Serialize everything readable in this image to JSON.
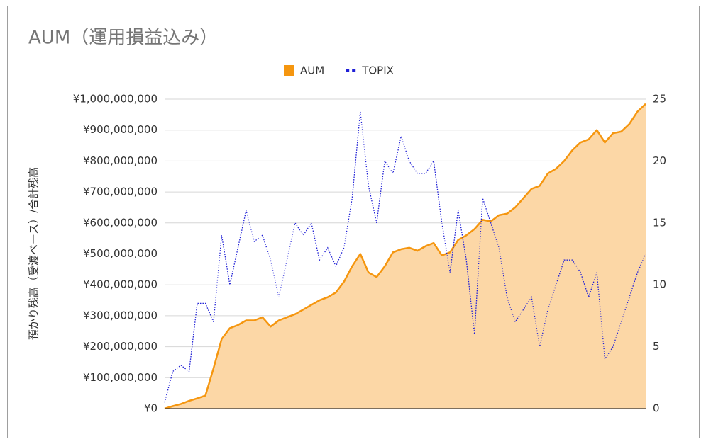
{
  "chart_data": {
    "type": "area_line",
    "title": "AUM（運用損益込み）",
    "y_label": "預かり残高（受渡ベース）/合計残高",
    "legend_position": "top",
    "grid": true,
    "categories": [
      null,
      null,
      null,
      null,
      null,
      null,
      null,
      null,
      null,
      null,
      null,
      null,
      null,
      null,
      null,
      null,
      null,
      null,
      null,
      null,
      null,
      null,
      null,
      null,
      null,
      null,
      null,
      null,
      null,
      null,
      null,
      null,
      null,
      null,
      null,
      null,
      null,
      null,
      null,
      null,
      null,
      null,
      null,
      null,
      null,
      null,
      null,
      null,
      null,
      null,
      null,
      null,
      null,
      null,
      null,
      null,
      null,
      null,
      null,
      null
    ],
    "series": [
      {
        "name": "AUM",
        "color": "#f5960f",
        "fill": "#fcd7a6",
        "style": "area",
        "values": [
          0,
          8000000,
          15000000,
          25000000,
          33000000,
          42000000,
          130000000,
          225000000,
          260000000,
          270000000,
          285000000,
          285000000,
          295000000,
          265000000,
          285000000,
          295000000,
          305000000,
          320000000,
          335000000,
          350000000,
          360000000,
          375000000,
          410000000,
          460000000,
          500000000,
          440000000,
          425000000,
          460000000,
          505000000,
          515000000,
          520000000,
          510000000,
          525000000,
          535000000,
          495000000,
          505000000,
          545000000,
          560000000,
          580000000,
          610000000,
          605000000,
          625000000,
          630000000,
          650000000,
          680000000,
          710000000,
          720000000,
          760000000,
          775000000,
          800000000,
          835000000,
          860000000,
          870000000,
          900000000,
          860000000,
          890000000,
          895000000,
          920000000,
          960000000,
          985000000
        ]
      },
      {
        "name": "TOPIX",
        "color": "#1f1fd6",
        "style": "dotted",
        "axis": "y2",
        "values": [
          0.5,
          3,
          3.5,
          3,
          8.5,
          8.5,
          7,
          14,
          10,
          13,
          16,
          13.5,
          14,
          12,
          9,
          12,
          15,
          14,
          15,
          12,
          13,
          11.5,
          13,
          17,
          24,
          18,
          15,
          20,
          19,
          22,
          20,
          19,
          19,
          20,
          15,
          11,
          16,
          12,
          6,
          17,
          15,
          13,
          9,
          7,
          8,
          9,
          5,
          8,
          10,
          12,
          12,
          11,
          9,
          11,
          4,
          5,
          7,
          9,
          11,
          12.5
        ]
      }
    ],
    "ylim": [
      0,
      1000000000
    ],
    "yticks": [
      {
        "value": 0,
        "label": "¥0"
      },
      {
        "value": 100000000,
        "label": "¥100,000,000"
      },
      {
        "value": 200000000,
        "label": "¥200,000,000"
      },
      {
        "value": 300000000,
        "label": "¥300,000,000"
      },
      {
        "value": 400000000,
        "label": "¥400,000,000"
      },
      {
        "value": 500000000,
        "label": "¥500,000,000"
      },
      {
        "value": 600000000,
        "label": "¥600,000,000"
      },
      {
        "value": 700000000,
        "label": "¥700,000,000"
      },
      {
        "value": 800000000,
        "label": "¥800,000,000"
      },
      {
        "value": 900000000,
        "label": "¥900,000,000"
      },
      {
        "value": 1000000000,
        "label": "¥1,000,000,000"
      }
    ],
    "y2lim": [
      0,
      25
    ],
    "y2ticks": [
      0,
      5,
      10,
      15,
      20,
      25
    ]
  }
}
